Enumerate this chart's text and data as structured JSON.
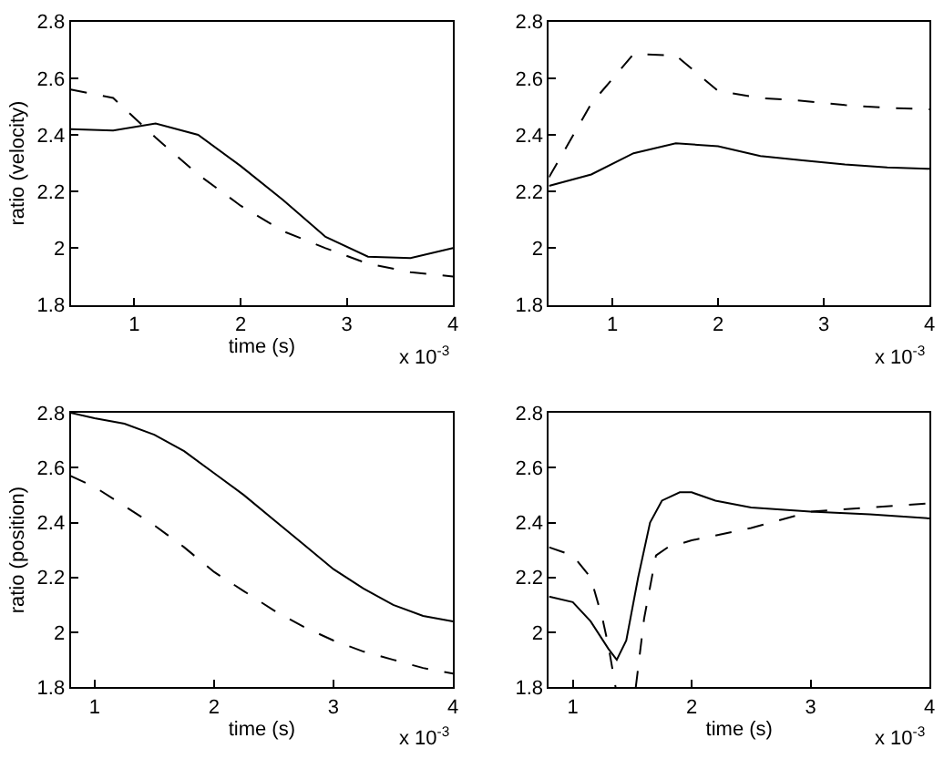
{
  "chart_data": [
    {
      "type": "line",
      "ylabel": "ratio (velocity)",
      "xlabel": "time (s)",
      "annotations": [
        "x 10$^{-3}$"
      ],
      "xlim": [
        0.4,
        4
      ],
      "ylim": [
        1.8,
        2.8
      ],
      "xticks": [
        1,
        2,
        3,
        4
      ],
      "yticks": [
        1.8,
        2,
        2.2,
        2.4,
        2.6,
        2.8
      ],
      "series": [
        {
          "color": "#000000",
          "line_style": "solid",
          "x": [
            0.4,
            0.8,
            1.2,
            1.6,
            2.0,
            2.4,
            2.8,
            3.2,
            3.6,
            4.0
          ],
          "values": [
            2.42,
            2.415,
            2.44,
            2.4,
            2.29,
            2.17,
            2.04,
            1.97,
            1.965,
            2.0
          ]
        },
        {
          "color": "#000000",
          "line_style": "dashed",
          "x": [
            0.4,
            0.8,
            1.2,
            1.6,
            2.0,
            2.4,
            2.8,
            3.2,
            3.6,
            4.0
          ],
          "values": [
            2.56,
            2.53,
            2.39,
            2.26,
            2.15,
            2.06,
            2.0,
            1.945,
            1.915,
            1.9
          ]
        }
      ]
    },
    {
      "type": "line",
      "annotations": [
        "x 10$^{-3}$"
      ],
      "xlim": [
        0.4,
        4
      ],
      "ylim": [
        1.8,
        2.8
      ],
      "xticks": [
        1,
        2,
        3,
        4
      ],
      "yticks": [
        1.8,
        2,
        2.2,
        2.4,
        2.6,
        2.8
      ],
      "series": [
        {
          "color": "#000000",
          "line_style": "solid",
          "x": [
            0.4,
            0.8,
            1.2,
            1.6,
            2.0,
            2.4,
            2.8,
            3.2,
            3.6,
            4.0
          ],
          "values": [
            2.22,
            2.26,
            2.335,
            2.37,
            2.36,
            2.325,
            2.31,
            2.295,
            2.285,
            2.28
          ]
        },
        {
          "color": "#000000",
          "line_style": "dashed",
          "x": [
            0.4,
            0.8,
            1.2,
            1.6,
            2.0,
            2.4,
            2.8,
            3.2,
            3.6,
            4.0
          ],
          "values": [
            2.25,
            2.51,
            2.685,
            2.68,
            2.555,
            2.53,
            2.52,
            2.505,
            2.495,
            2.49
          ]
        }
      ]
    },
    {
      "type": "line",
      "ylabel": "ratio (position)",
      "xlabel": "time (s)",
      "annotations": [
        "x 10$^{-3}$"
      ],
      "xlim": [
        0.8,
        4
      ],
      "ylim": [
        1.8,
        2.8
      ],
      "xticks": [
        1,
        2,
        3,
        4
      ],
      "yticks": [
        1.8,
        2,
        2.2,
        2.4,
        2.6,
        2.8
      ],
      "series": [
        {
          "color": "#000000",
          "line_style": "solid",
          "x": [
            0.8,
            1.0,
            1.25,
            1.5,
            1.75,
            2.0,
            2.25,
            2.5,
            2.75,
            3.0,
            3.25,
            3.5,
            3.75,
            4.0
          ],
          "values": [
            2.8,
            2.78,
            2.76,
            2.72,
            2.66,
            2.58,
            2.5,
            2.41,
            2.32,
            2.23,
            2.16,
            2.1,
            2.06,
            2.04
          ]
        },
        {
          "color": "#000000",
          "line_style": "dashed",
          "x": [
            0.8,
            1.0,
            1.25,
            1.5,
            1.75,
            2.0,
            2.25,
            2.5,
            2.75,
            3.0,
            3.25,
            3.5,
            3.75,
            4.0
          ],
          "values": [
            2.57,
            2.53,
            2.46,
            2.39,
            2.31,
            2.22,
            2.15,
            2.08,
            2.02,
            1.97,
            1.93,
            1.9,
            1.87,
            1.85
          ]
        }
      ]
    },
    {
      "type": "line",
      "xlabel": "time (s)",
      "annotations": [
        "x 10$^{-3}$"
      ],
      "xlim": [
        0.8,
        4
      ],
      "ylim": [
        1.8,
        2.8
      ],
      "xticks": [
        1,
        2,
        3,
        4
      ],
      "yticks": [
        1.8,
        2,
        2.2,
        2.4,
        2.6,
        2.8
      ],
      "series": [
        {
          "color": "#000000",
          "line_style": "solid",
          "x": [
            0.8,
            1.0,
            1.15,
            1.3,
            1.37,
            1.45,
            1.55,
            1.65,
            1.75,
            1.9,
            2.0,
            2.2,
            2.5,
            3.0,
            3.5,
            4.0
          ],
          "values": [
            2.13,
            2.11,
            2.04,
            1.94,
            1.9,
            1.97,
            2.2,
            2.4,
            2.48,
            2.51,
            2.51,
            2.48,
            2.455,
            2.44,
            2.43,
            2.415
          ]
        },
        {
          "color": "#000000",
          "line_style": "dashed",
          "x": [
            0.8,
            1.0,
            1.15,
            1.25,
            1.3,
            1.36,
            1.45,
            1.53,
            1.6,
            1.7,
            1.8,
            2.0,
            2.5,
            3.0,
            3.5,
            4.0
          ],
          "values": [
            2.31,
            2.28,
            2.2,
            2.05,
            1.95,
            1.8,
            null,
            1.8,
            2.05,
            2.28,
            2.31,
            2.335,
            2.38,
            2.44,
            2.455,
            2.47
          ]
        }
      ]
    }
  ]
}
